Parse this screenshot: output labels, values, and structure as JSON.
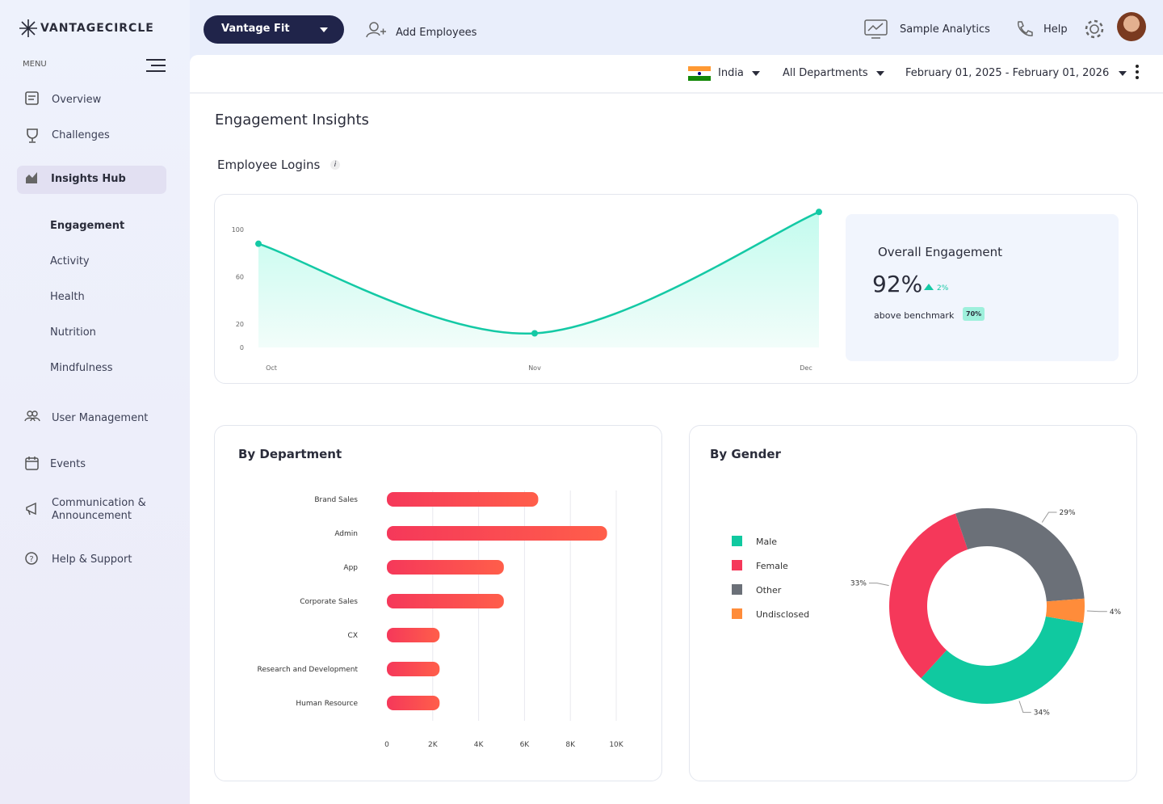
{
  "header": {
    "brand": "VANTAGECIRCLE",
    "product": "Vantage Fit",
    "add_employees": "Add Employees",
    "sample_analytics": "Sample Analytics",
    "help": "Help"
  },
  "sidebar": {
    "menu_label": "MENU",
    "items": [
      "Overview",
      "Challenges",
      "Insights Hub"
    ],
    "sub_items": [
      "Engagement",
      "Activity",
      "Health",
      "Nutrition",
      "Mindfulness"
    ],
    "more_items": [
      "User Management",
      "Events",
      "Communication & Announcement",
      "Help & Support"
    ]
  },
  "filters": {
    "country": "India",
    "department": "All Departments",
    "date_range": "February 01, 2025 - February 01, 2026"
  },
  "page_title": "Engagement Insights",
  "section_title": "Employee Logins",
  "info_icon": "i",
  "summary": {
    "title": "Overall Engagement",
    "value": "92%",
    "change": "2%",
    "benchmark_text": "above benchmark",
    "benchmark": "70%"
  },
  "chart_data": [
    {
      "type": "line",
      "categories": [
        "Oct",
        "Nov",
        "Dec"
      ],
      "values": [
        88,
        12,
        115
      ],
      "color": "#14c9a5",
      "ylim": [
        0,
        120
      ],
      "yticks": [
        0,
        20,
        60,
        100
      ]
    },
    {
      "type": "bar",
      "orientation": "horizontal",
      "title": "By Department",
      "categories": [
        "Brand Sales",
        "Admin",
        "App",
        "Corporate Sales",
        "CX",
        "Research and Development",
        "Human Resource"
      ],
      "values": [
        6600,
        9600,
        5100,
        5100,
        2300,
        2300,
        2300
      ],
      "color": "#f5385a",
      "xlim": [
        0,
        10000
      ],
      "xticks": [
        0,
        {
          "value": 2000,
          "label": "2K"
        },
        {
          "value": 4000,
          "label": "4K"
        },
        {
          "value": 6000,
          "label": "6K"
        },
        {
          "value": 8000,
          "label": "8K"
        },
        {
          "value": 10000,
          "label": "10K"
        }
      ],
      "grid": true
    },
    {
      "type": "pie",
      "donut": true,
      "title": "By Gender",
      "categories": [
        "Male",
        "Female",
        "Other",
        "Undisclosed"
      ],
      "values": [
        34,
        33,
        29,
        4
      ],
      "value_labels": [
        "34%",
        "33%",
        "29%",
        "4%"
      ],
      "colors": [
        "#10c9a0",
        "#f5385a",
        "#6b7078",
        "#ff8c3a"
      ]
    }
  ]
}
